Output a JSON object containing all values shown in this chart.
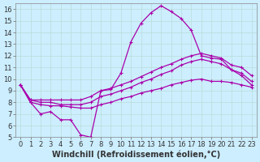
{
  "background_color": "#cceeff",
  "grid_color": "#b8ddd8",
  "line_color": "#aa00aa",
  "xlabel": "Windchill (Refroidissement éolien,°C)",
  "xlabel_fontsize": 7,
  "tick_fontsize": 6,
  "xlim": [
    -0.5,
    23.5
  ],
  "ylim": [
    5,
    16.5
  ],
  "yticks": [
    5,
    6,
    7,
    8,
    9,
    10,
    11,
    12,
    13,
    14,
    15,
    16
  ],
  "xticks": [
    0,
    1,
    2,
    3,
    4,
    5,
    6,
    7,
    8,
    9,
    10,
    11,
    12,
    13,
    14,
    15,
    16,
    17,
    18,
    19,
    20,
    21,
    22,
    23
  ],
  "series1_x": [
    0,
    1,
    2,
    3,
    4,
    5,
    6,
    7,
    8,
    9,
    10,
    11,
    12,
    13,
    14,
    15,
    16,
    17,
    18,
    19,
    20,
    21,
    22,
    23
  ],
  "series1_y": [
    9.5,
    8.0,
    7.0,
    7.2,
    6.5,
    6.5,
    5.2,
    5.0,
    9.0,
    9.1,
    10.5,
    13.2,
    14.8,
    15.7,
    16.3,
    15.8,
    15.2,
    14.2,
    12.0,
    11.8,
    11.7,
    10.8,
    10.3,
    9.5
  ],
  "series2_x": [
    0,
    1,
    2,
    3,
    4,
    5,
    6,
    7,
    8,
    9,
    10,
    11,
    12,
    13,
    14,
    15,
    16,
    17,
    18,
    19,
    20,
    21,
    22,
    23
  ],
  "series2_y": [
    9.5,
    8.2,
    8.2,
    8.2,
    8.2,
    8.2,
    8.2,
    8.5,
    9.0,
    9.2,
    9.5,
    9.8,
    10.2,
    10.6,
    11.0,
    11.3,
    11.7,
    12.0,
    12.2,
    12.0,
    11.8,
    11.2,
    11.0,
    10.3
  ],
  "series3_x": [
    0,
    1,
    2,
    3,
    4,
    5,
    6,
    7,
    8,
    9,
    10,
    11,
    12,
    13,
    14,
    15,
    16,
    17,
    18,
    19,
    20,
    21,
    22,
    23
  ],
  "series3_y": [
    9.5,
    8.2,
    8.0,
    8.0,
    7.8,
    7.8,
    7.8,
    8.0,
    8.5,
    8.7,
    9.0,
    9.3,
    9.7,
    10.0,
    10.4,
    10.7,
    11.2,
    11.5,
    11.7,
    11.5,
    11.3,
    10.8,
    10.5,
    9.8
  ],
  "series4_x": [
    0,
    1,
    2,
    3,
    4,
    5,
    6,
    7,
    8,
    9,
    10,
    11,
    12,
    13,
    14,
    15,
    16,
    17,
    18,
    19,
    20,
    21,
    22,
    23
  ],
  "series4_y": [
    9.5,
    8.0,
    7.8,
    7.7,
    7.7,
    7.6,
    7.5,
    7.5,
    7.8,
    8.0,
    8.3,
    8.5,
    8.8,
    9.0,
    9.2,
    9.5,
    9.7,
    9.9,
    10.0,
    9.8,
    9.8,
    9.7,
    9.5,
    9.3
  ]
}
